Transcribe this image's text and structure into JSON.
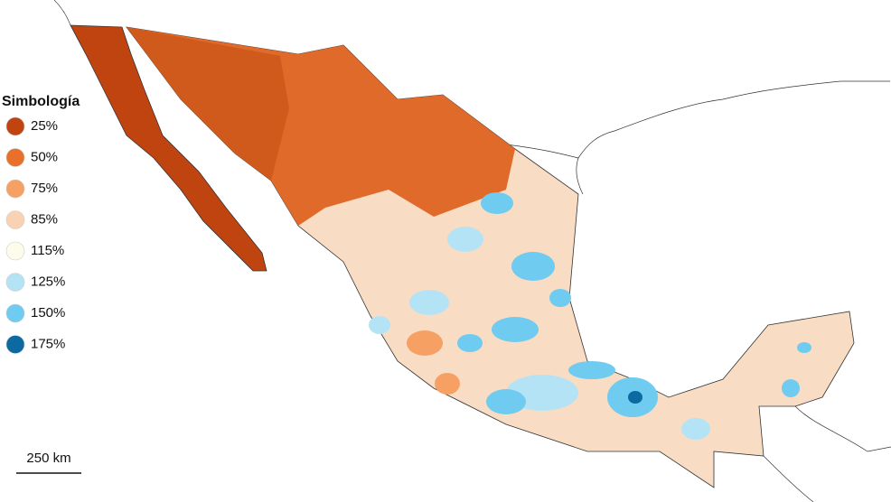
{
  "legend": {
    "title": "Simbología",
    "items": [
      {
        "label": "25%",
        "color": "#c0440f"
      },
      {
        "label": "50%",
        "color": "#e8702a"
      },
      {
        "label": "75%",
        "color": "#f7a064"
      },
      {
        "label": "85%",
        "color": "#f8d2b2"
      },
      {
        "label": "115%",
        "color": "#fdfbec"
      },
      {
        "label": "125%",
        "color": "#b5e3f6"
      },
      {
        "label": "150%",
        "color": "#6fcbef"
      },
      {
        "label": "175%",
        "color": "#0d6aa0"
      }
    ]
  },
  "scale": {
    "label": "250 km"
  }
}
